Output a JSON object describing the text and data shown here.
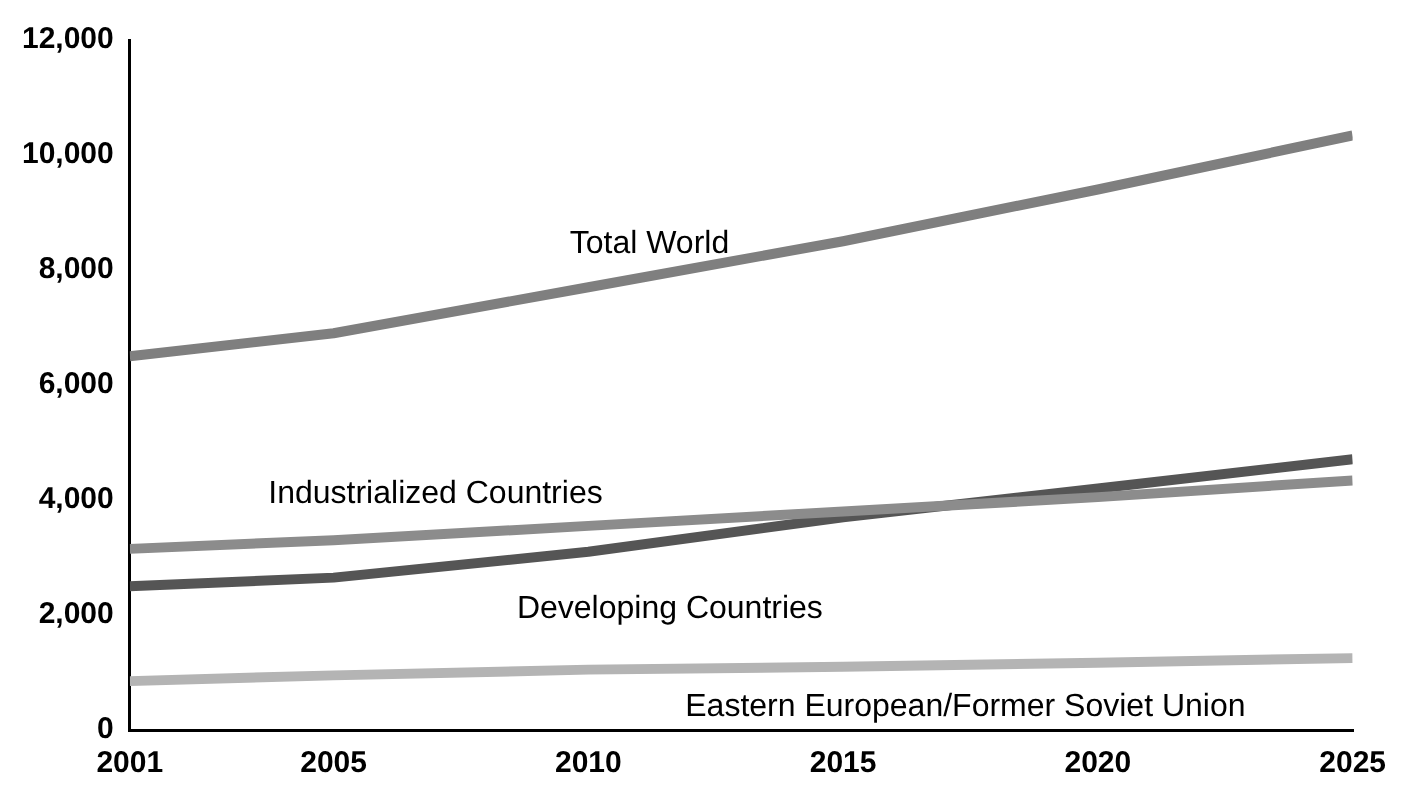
{
  "chart_data": {
    "type": "line",
    "x": [
      2001,
      2005,
      2010,
      2015,
      2020,
      2025
    ],
    "xlim": [
      2001,
      2025
    ],
    "xticks": [
      2001,
      2005,
      2010,
      2015,
      2020,
      2025
    ],
    "ylim": [
      0,
      12000
    ],
    "yticks": [
      {
        "value": 0,
        "label": "0"
      },
      {
        "value": 2000,
        "label": "2,000"
      },
      {
        "value": 4000,
        "label": "4,000"
      },
      {
        "value": 6000,
        "label": "6,000"
      },
      {
        "value": 8000,
        "label": "8,000"
      },
      {
        "value": 10000,
        "label": "10,000"
      },
      {
        "value": 12000,
        "label": "12,000"
      }
    ],
    "grid": false,
    "legend": false,
    "marker": "none",
    "line_style": "solid",
    "series": [
      {
        "name": "Total World",
        "color": "#7f7f7f",
        "values": [
          6500,
          6900,
          7700,
          8500,
          9400,
          10340
        ]
      },
      {
        "name": "Industrialized Countries",
        "color": "#8c8c8c",
        "values": [
          3150,
          3300,
          3550,
          3800,
          4050,
          4340
        ]
      },
      {
        "name": "Developing Countries",
        "color": "#555555",
        "values": [
          2500,
          2650,
          3100,
          3700,
          4200,
          4710
        ]
      },
      {
        "name": "Eastern European/Former Soviet Union",
        "color": "#b4b4b4",
        "values": [
          850,
          950,
          1050,
          1100,
          1170,
          1250
        ]
      }
    ]
  }
}
